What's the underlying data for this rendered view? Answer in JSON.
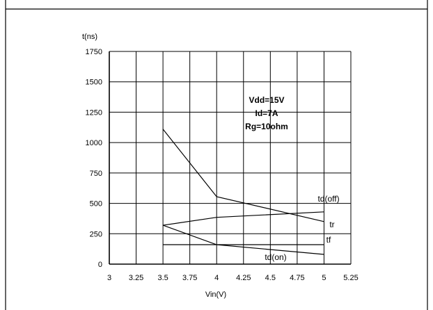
{
  "chart_data": {
    "type": "line",
    "ylabel": "t(ns)",
    "xlabel": "Vin(V)",
    "xlim": [
      3,
      5.25
    ],
    "ylim": [
      0,
      1750
    ],
    "x_ticks": [
      "3",
      "3.25",
      "3.5",
      "3.75",
      "4",
      "4.25",
      "4.5",
      "4.75",
      "5",
      "5.25"
    ],
    "y_ticks": [
      "0",
      "250",
      "500",
      "750",
      "1000",
      "1250",
      "1500",
      "1750"
    ],
    "grid": true,
    "annotations": [
      "Vdd=15V",
      "Id=7A",
      "Rg=10ohm"
    ],
    "series": [
      {
        "name": "td(off)",
        "x": [
          3.5,
          4,
          5
        ],
        "y": [
          1110,
          555,
          350
        ]
      },
      {
        "name": "tr",
        "x": [
          3.5,
          4,
          5
        ],
        "y": [
          320,
          385,
          430
        ]
      },
      {
        "name": "tf",
        "x": [
          3.5,
          4,
          5
        ],
        "y": [
          160,
          160,
          160
        ]
      },
      {
        "name": "td(on)",
        "x": [
          3.5,
          4,
          5
        ],
        "y": [
          320,
          160,
          80
        ]
      }
    ]
  }
}
